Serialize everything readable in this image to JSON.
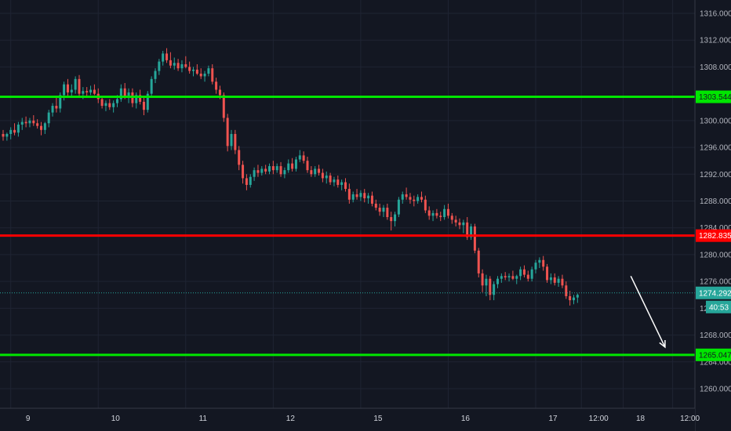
{
  "chart_data": {
    "type": "candlestick",
    "colors": {
      "background": "#131722",
      "grid": "#1f2433",
      "up": "#26a69a",
      "down": "#ef5350",
      "support_line": "#00e600",
      "resistance_line": "#ff0000",
      "current_price_line": "#26a69a",
      "arrow": "#ffffff",
      "axis_text": "#b2b5be"
    },
    "y_axis": {
      "min": 1256,
      "max": 1318,
      "ticks": [
        "1316.000",
        "1312.000",
        "1308.000",
        "1300.000",
        "1296.000",
        "1292.000",
        "1288.000",
        "1284.000",
        "1280.000",
        "1276.000",
        "1268.000",
        "1264.000",
        "1260.000"
      ],
      "tick_values": [
        1316,
        1312,
        1308,
        1300,
        1296,
        1292,
        1288,
        1284,
        1280,
        1276,
        1268,
        1264,
        1260
      ],
      "partial_tick": {
        "label": "12",
        "value": 1272
      }
    },
    "x_axis": {
      "labels": [
        "9",
        "10",
        "11",
        "12",
        "15",
        "16",
        "17",
        "12:00",
        "18",
        "12:00"
      ],
      "label_x_idx": [
        2,
        25,
        48,
        71,
        94,
        117,
        140,
        152,
        163,
        176
      ]
    },
    "levels": [
      {
        "price": 1303.544,
        "label": "1303.544",
        "role": "support"
      },
      {
        "price": 1282.835,
        "label": "1282.835",
        "role": "resistance"
      },
      {
        "price": 1265.047,
        "label": "1265.047",
        "role": "support"
      }
    ],
    "current_price": {
      "price": 1274.292,
      "label": "1274.292",
      "countdown": "40:53"
    },
    "projection_arrow": {
      "from_idx": 165,
      "from_price": 1276.8,
      "to_idx": 174,
      "to_price": 1266.2
    },
    "candles": [
      [
        1298.0,
        1298.6,
        1297.0,
        1297.6
      ],
      [
        1297.6,
        1298.2,
        1297.0,
        1298.0
      ],
      [
        1298.0,
        1299.0,
        1297.2,
        1298.6
      ],
      [
        1298.6,
        1299.6,
        1297.8,
        1298.2
      ],
      [
        1298.2,
        1299.8,
        1297.6,
        1299.4
      ],
      [
        1299.4,
        1300.4,
        1298.6,
        1299.8
      ],
      [
        1299.8,
        1300.6,
        1299.0,
        1299.6
      ],
      [
        1299.6,
        1300.4,
        1299.0,
        1300.0
      ],
      [
        1300.0,
        1300.8,
        1299.2,
        1299.6
      ],
      [
        1299.6,
        1300.2,
        1298.8,
        1299.2
      ],
      [
        1299.2,
        1299.8,
        1297.8,
        1298.6
      ],
      [
        1298.6,
        1299.8,
        1298.0,
        1299.6
      ],
      [
        1299.6,
        1301.6,
        1299.0,
        1301.2
      ],
      [
        1301.2,
        1302.6,
        1300.6,
        1302.2
      ],
      [
        1302.2,
        1303.4,
        1301.2,
        1301.8
      ],
      [
        1301.8,
        1304.2,
        1301.2,
        1303.8
      ],
      [
        1303.8,
        1305.8,
        1303.0,
        1305.4
      ],
      [
        1305.4,
        1306.2,
        1303.6,
        1304.2
      ],
      [
        1304.2,
        1305.4,
        1303.4,
        1304.6
      ],
      [
        1304.6,
        1306.6,
        1304.0,
        1306.2
      ],
      [
        1306.2,
        1306.8,
        1303.6,
        1304.0
      ],
      [
        1304.0,
        1305.0,
        1303.2,
        1304.4
      ],
      [
        1304.4,
        1305.0,
        1303.6,
        1304.2
      ],
      [
        1304.2,
        1305.2,
        1303.8,
        1304.6
      ],
      [
        1304.6,
        1305.4,
        1303.8,
        1304.0
      ],
      [
        1304.0,
        1304.8,
        1302.6,
        1303.2
      ],
      [
        1303.2,
        1303.6,
        1301.8,
        1302.2
      ],
      [
        1302.2,
        1303.0,
        1301.4,
        1302.6
      ],
      [
        1302.6,
        1303.2,
        1301.6,
        1302.0
      ],
      [
        1302.0,
        1303.0,
        1301.2,
        1302.6
      ],
      [
        1302.6,
        1303.8,
        1302.0,
        1303.2
      ],
      [
        1303.2,
        1305.4,
        1302.8,
        1304.8
      ],
      [
        1304.8,
        1305.6,
        1303.2,
        1303.6
      ],
      [
        1303.6,
        1304.8,
        1302.6,
        1304.2
      ],
      [
        1304.2,
        1304.8,
        1302.0,
        1302.6
      ],
      [
        1302.6,
        1304.2,
        1301.8,
        1303.8
      ],
      [
        1303.8,
        1304.6,
        1302.4,
        1302.8
      ],
      [
        1302.8,
        1303.4,
        1300.8,
        1301.6
      ],
      [
        1301.6,
        1304.4,
        1301.2,
        1304.0
      ],
      [
        1304.0,
        1306.6,
        1303.6,
        1306.2
      ],
      [
        1306.2,
        1307.8,
        1305.6,
        1307.4
      ],
      [
        1307.4,
        1309.2,
        1306.8,
        1308.8
      ],
      [
        1308.8,
        1310.4,
        1308.2,
        1310.0
      ],
      [
        1310.0,
        1310.8,
        1308.6,
        1309.0
      ],
      [
        1309.0,
        1310.2,
        1307.8,
        1308.2
      ],
      [
        1308.2,
        1309.4,
        1307.6,
        1308.6
      ],
      [
        1308.6,
        1309.2,
        1307.4,
        1307.8
      ],
      [
        1307.8,
        1309.0,
        1307.2,
        1308.4
      ],
      [
        1308.4,
        1309.6,
        1307.8,
        1308.0
      ],
      [
        1308.0,
        1308.8,
        1307.0,
        1307.4
      ],
      [
        1307.4,
        1308.0,
        1306.6,
        1307.6
      ],
      [
        1307.6,
        1308.4,
        1306.8,
        1307.0
      ],
      [
        1307.0,
        1307.8,
        1306.2,
        1306.6
      ],
      [
        1306.6,
        1307.4,
        1305.8,
        1307.0
      ],
      [
        1307.0,
        1308.2,
        1306.6,
        1307.8
      ],
      [
        1307.8,
        1308.4,
        1305.4,
        1305.8
      ],
      [
        1305.8,
        1306.4,
        1304.0,
        1304.6
      ],
      [
        1304.6,
        1305.2,
        1303.2,
        1303.8
      ],
      [
        1303.8,
        1304.2,
        1299.8,
        1300.4
      ],
      [
        1300.4,
        1301.0,
        1295.4,
        1296.2
      ],
      [
        1296.2,
        1298.6,
        1295.6,
        1298.0
      ],
      [
        1298.0,
        1298.6,
        1295.0,
        1295.6
      ],
      [
        1295.6,
        1296.2,
        1292.6,
        1293.4
      ],
      [
        1293.4,
        1294.0,
        1290.6,
        1291.4
      ],
      [
        1291.4,
        1292.0,
        1289.6,
        1290.4
      ],
      [
        1290.4,
        1292.0,
        1290.0,
        1291.6
      ],
      [
        1291.6,
        1293.0,
        1291.0,
        1292.6
      ],
      [
        1292.6,
        1293.4,
        1291.6,
        1292.2
      ],
      [
        1292.2,
        1293.2,
        1291.8,
        1292.8
      ],
      [
        1292.8,
        1293.4,
        1292.0,
        1292.4
      ],
      [
        1292.4,
        1293.6,
        1292.0,
        1293.2
      ],
      [
        1293.2,
        1294.0,
        1292.0,
        1292.6
      ],
      [
        1292.6,
        1293.6,
        1292.2,
        1293.2
      ],
      [
        1293.2,
        1293.8,
        1291.6,
        1292.0
      ],
      [
        1292.0,
        1293.0,
        1291.4,
        1292.6
      ],
      [
        1292.6,
        1294.2,
        1292.2,
        1293.6
      ],
      [
        1293.6,
        1294.4,
        1292.4,
        1292.8
      ],
      [
        1292.8,
        1294.6,
        1292.4,
        1294.2
      ],
      [
        1294.2,
        1295.6,
        1293.8,
        1294.8
      ],
      [
        1294.8,
        1295.4,
        1293.6,
        1294.0
      ],
      [
        1294.0,
        1294.6,
        1292.2,
        1292.6
      ],
      [
        1292.6,
        1293.2,
        1291.6,
        1292.0
      ],
      [
        1292.0,
        1293.2,
        1291.6,
        1292.8
      ],
      [
        1292.8,
        1293.4,
        1291.8,
        1292.2
      ],
      [
        1292.2,
        1292.8,
        1290.8,
        1291.4
      ],
      [
        1291.4,
        1292.4,
        1290.6,
        1291.8
      ],
      [
        1291.8,
        1292.2,
        1290.4,
        1290.8
      ],
      [
        1290.8,
        1291.6,
        1290.2,
        1291.2
      ],
      [
        1291.2,
        1291.8,
        1290.0,
        1290.4
      ],
      [
        1290.4,
        1291.2,
        1289.6,
        1290.8
      ],
      [
        1290.8,
        1291.4,
        1289.4,
        1289.8
      ],
      [
        1289.8,
        1290.6,
        1287.6,
        1288.2
      ],
      [
        1288.2,
        1289.4,
        1287.8,
        1289.0
      ],
      [
        1289.0,
        1289.8,
        1288.2,
        1288.6
      ],
      [
        1288.6,
        1289.6,
        1288.0,
        1289.2
      ],
      [
        1289.2,
        1289.8,
        1287.8,
        1288.4
      ],
      [
        1288.4,
        1289.2,
        1287.6,
        1288.8
      ],
      [
        1288.8,
        1289.4,
        1287.2,
        1287.6
      ],
      [
        1287.6,
        1288.2,
        1286.6,
        1287.0
      ],
      [
        1287.0,
        1287.6,
        1285.8,
        1286.4
      ],
      [
        1286.4,
        1287.4,
        1285.6,
        1287.0
      ],
      [
        1287.0,
        1287.6,
        1285.2,
        1285.6
      ],
      [
        1285.6,
        1286.4,
        1283.6,
        1285.0
      ],
      [
        1285.0,
        1286.4,
        1284.2,
        1286.0
      ],
      [
        1286.0,
        1288.6,
        1285.6,
        1288.2
      ],
      [
        1288.2,
        1289.4,
        1287.6,
        1289.0
      ],
      [
        1289.0,
        1290.0,
        1288.2,
        1288.6
      ],
      [
        1288.6,
        1289.2,
        1287.6,
        1288.2
      ],
      [
        1288.2,
        1288.8,
        1287.2,
        1288.0
      ],
      [
        1288.0,
        1289.0,
        1287.6,
        1288.6
      ],
      [
        1288.6,
        1289.4,
        1287.8,
        1288.2
      ],
      [
        1288.2,
        1288.8,
        1286.2,
        1286.6
      ],
      [
        1286.6,
        1287.2,
        1285.2,
        1285.8
      ],
      [
        1285.8,
        1286.6,
        1285.0,
        1286.2
      ],
      [
        1286.2,
        1286.8,
        1285.4,
        1285.8
      ],
      [
        1285.8,
        1286.4,
        1285.0,
        1285.6
      ],
      [
        1285.6,
        1287.4,
        1285.2,
        1286.8
      ],
      [
        1286.8,
        1287.6,
        1285.4,
        1285.8
      ],
      [
        1285.8,
        1286.2,
        1284.6,
        1285.2
      ],
      [
        1285.2,
        1285.8,
        1284.2,
        1284.8
      ],
      [
        1284.8,
        1285.4,
        1283.8,
        1284.4
      ],
      [
        1284.4,
        1285.2,
        1283.2,
        1284.8
      ],
      [
        1284.8,
        1285.6,
        1282.2,
        1282.6
      ],
      [
        1282.6,
        1284.6,
        1282.2,
        1284.2
      ],
      [
        1284.2,
        1284.6,
        1280.2,
        1280.6
      ],
      [
        1280.6,
        1281.0,
        1276.6,
        1277.2
      ],
      [
        1277.2,
        1277.8,
        1274.4,
        1275.4
      ],
      [
        1275.4,
        1277.0,
        1273.8,
        1276.4
      ],
      [
        1276.4,
        1276.8,
        1273.2,
        1274.0
      ],
      [
        1274.0,
        1276.0,
        1273.2,
        1275.6
      ],
      [
        1275.6,
        1276.8,
        1275.0,
        1276.4
      ],
      [
        1276.4,
        1277.2,
        1275.8,
        1276.8
      ],
      [
        1276.8,
        1277.4,
        1276.2,
        1276.6
      ],
      [
        1276.6,
        1277.2,
        1276.0,
        1276.8
      ],
      [
        1276.8,
        1277.6,
        1276.2,
        1276.4
      ],
      [
        1276.4,
        1277.0,
        1275.6,
        1276.8
      ],
      [
        1276.8,
        1278.2,
        1276.2,
        1277.8
      ],
      [
        1277.8,
        1278.4,
        1276.6,
        1277.0
      ],
      [
        1277.0,
        1277.6,
        1276.0,
        1276.4
      ],
      [
        1276.4,
        1278.2,
        1276.0,
        1277.8
      ],
      [
        1277.8,
        1279.2,
        1277.2,
        1278.8
      ],
      [
        1278.8,
        1279.6,
        1278.0,
        1279.2
      ],
      [
        1279.2,
        1279.8,
        1277.6,
        1278.2
      ],
      [
        1278.2,
        1278.6,
        1275.8,
        1276.2
      ],
      [
        1276.2,
        1277.2,
        1275.6,
        1276.6
      ],
      [
        1276.6,
        1277.2,
        1275.4,
        1275.8
      ],
      [
        1275.8,
        1276.8,
        1275.2,
        1276.4
      ],
      [
        1276.4,
        1277.0,
        1275.0,
        1275.4
      ],
      [
        1275.4,
        1276.0,
        1273.4,
        1273.8
      ],
      [
        1273.8,
        1274.6,
        1272.4,
        1273.2
      ],
      [
        1273.2,
        1274.0,
        1272.6,
        1273.6
      ],
      [
        1273.6,
        1274.2,
        1272.8,
        1274.0
      ]
    ]
  }
}
